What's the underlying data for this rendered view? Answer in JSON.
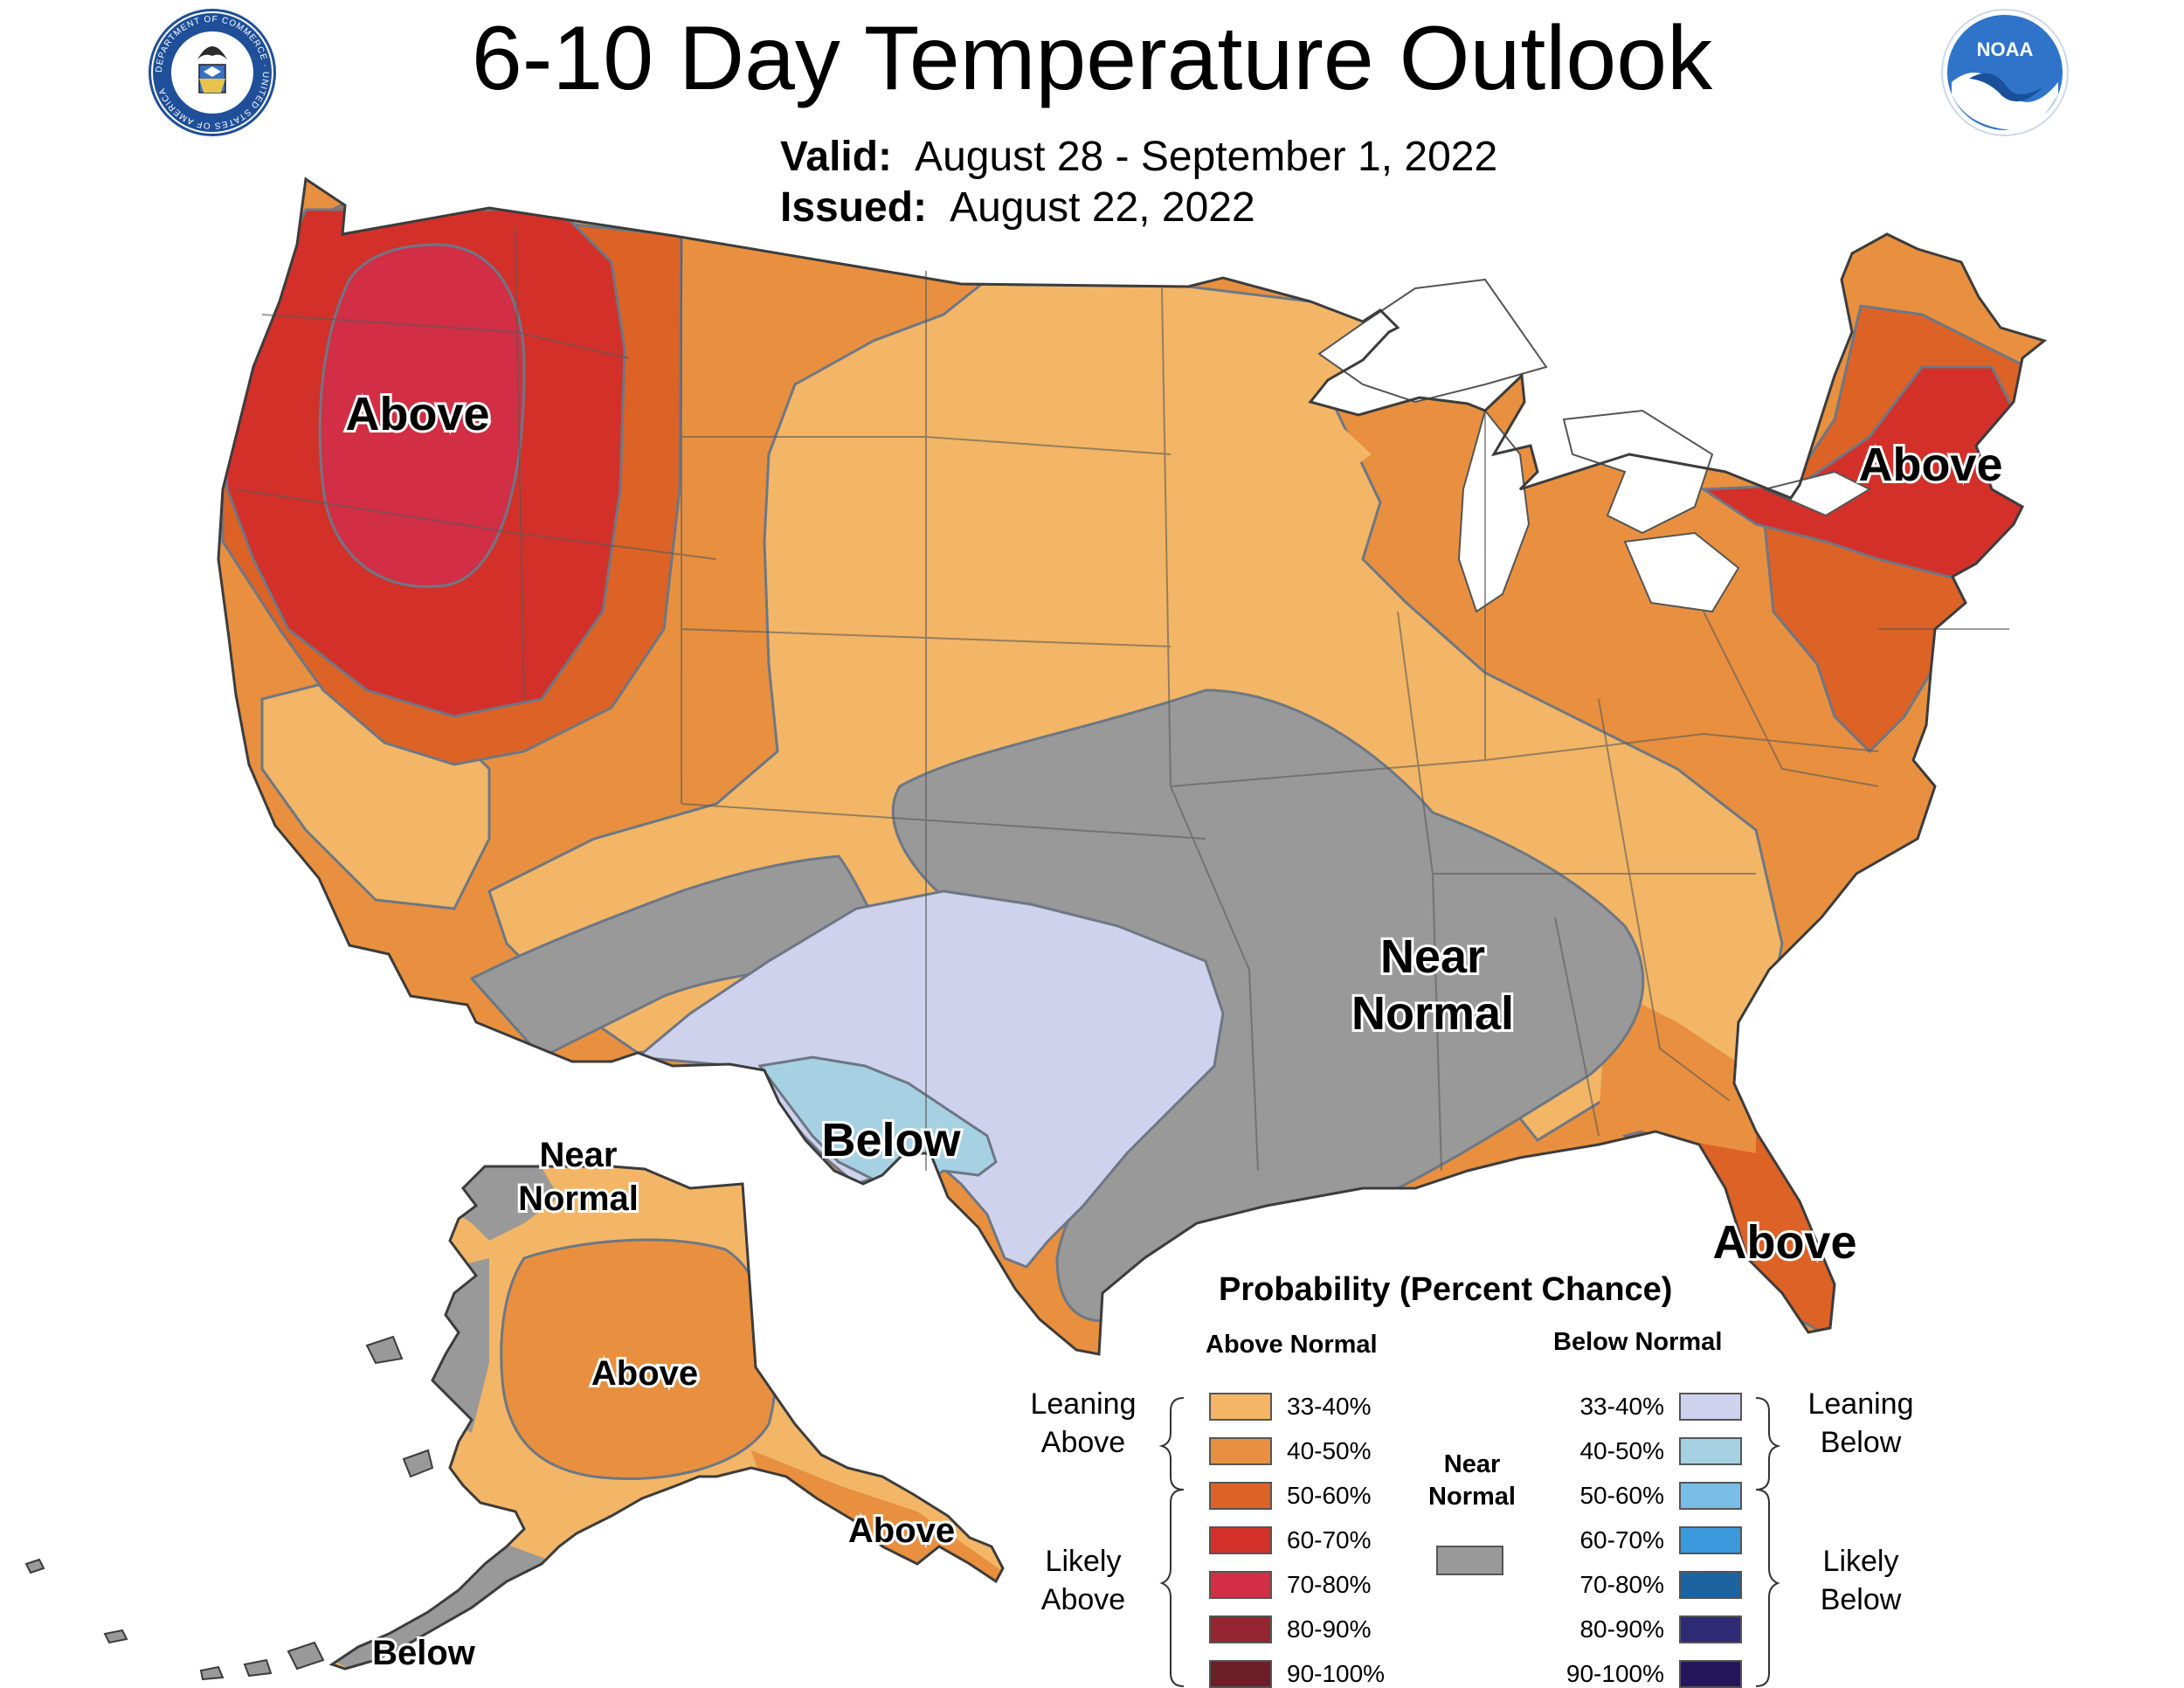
{
  "title": "6-10 Day Temperature Outlook",
  "valid": {
    "label": "Valid:",
    "value": "August 28 - September 1, 2022"
  },
  "issued": {
    "label": "Issued:",
    "value": "August 22, 2022"
  },
  "logos": [
    {
      "name": "department-of-commerce-seal",
      "text": "DEPARTMENT OF COMMERCE · UNITED STATES OF AMERICA"
    },
    {
      "name": "noaa-logo",
      "text": "NOAA"
    }
  ],
  "region_labels": [
    {
      "name": "label-above-northwest",
      "lines": [
        "Above"
      ]
    },
    {
      "name": "label-above-northeast",
      "lines": [
        "Above"
      ]
    },
    {
      "name": "label-near-normal-south",
      "lines": [
        "Near",
        "Normal"
      ]
    },
    {
      "name": "label-below-texas",
      "lines": [
        "Below"
      ]
    },
    {
      "name": "label-above-florida",
      "lines": [
        "Above"
      ]
    },
    {
      "name": "label-near-normal-alaska",
      "lines": [
        "Near",
        "Normal"
      ]
    },
    {
      "name": "label-above-alaska",
      "lines": [
        "Above"
      ]
    },
    {
      "name": "label-above-alaska-southeast",
      "lines": [
        "Above"
      ]
    },
    {
      "name": "label-below-aleutians",
      "lines": [
        "Below"
      ]
    }
  ],
  "legend": {
    "title": "Probability (Percent Chance)",
    "above_header": "Above Normal",
    "below_header": "Below Normal",
    "near_header": [
      "Near",
      "Normal"
    ],
    "leaning_above": [
      "Leaning",
      "Above"
    ],
    "likely_above": [
      "Likely",
      "Above"
    ],
    "leaning_below": [
      "Leaning",
      "Below"
    ],
    "likely_below": [
      "Likely",
      "Below"
    ],
    "near_color": "#999999",
    "above": [
      {
        "range": "33-40%",
        "color": "#F2B666"
      },
      {
        "range": "40-50%",
        "color": "#E8903F"
      },
      {
        "range": "50-60%",
        "color": "#DD6226"
      },
      {
        "range": "60-70%",
        "color": "#D3302A"
      },
      {
        "range": "70-80%",
        "color": "#D22E45"
      },
      {
        "range": "80-90%",
        "color": "#952530"
      },
      {
        "range": "90-100%",
        "color": "#6B1F27"
      }
    ],
    "below": [
      {
        "range": "33-40%",
        "color": "#CED2EC"
      },
      {
        "range": "40-50%",
        "color": "#A6D1E2"
      },
      {
        "range": "50-60%",
        "color": "#77BDE5"
      },
      {
        "range": "60-70%",
        "color": "#3A9ADB"
      },
      {
        "range": "70-80%",
        "color": "#1D63A0"
      },
      {
        "range": "80-90%",
        "color": "#2E2A74"
      },
      {
        "range": "90-100%",
        "color": "#23165B"
      }
    ]
  }
}
